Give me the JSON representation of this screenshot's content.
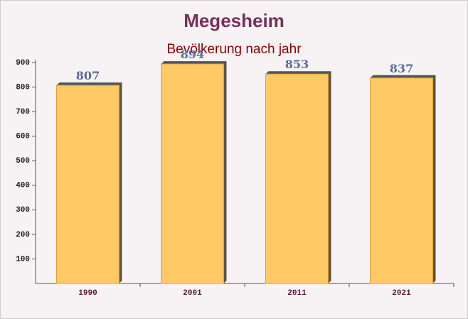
{
  "chart_data": {
    "type": "bar",
    "title": "Megesheim",
    "subtitle": "Bevölkerung nach jahr",
    "categories": [
      "1990",
      "2001",
      "2011",
      "2021"
    ],
    "values": [
      807,
      894,
      853,
      837
    ],
    "color": "#ffc966",
    "ylim": [
      0,
      900
    ],
    "yticks": [
      100,
      200,
      300,
      400,
      500,
      600,
      700,
      800,
      900
    ]
  }
}
